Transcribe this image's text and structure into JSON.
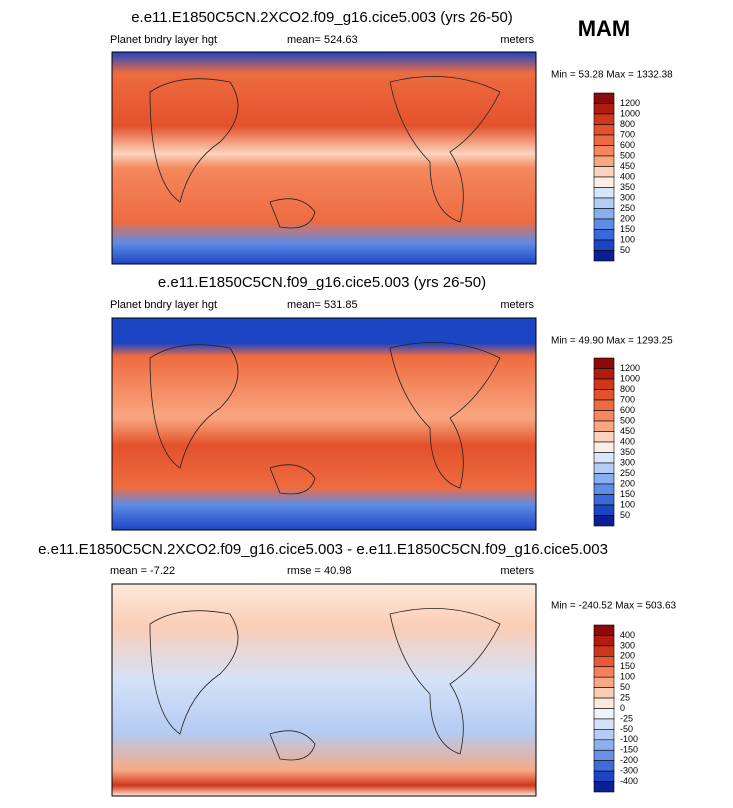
{
  "season": "MAM",
  "panels": [
    {
      "title": "e.e11.E1850C5CN.2XCO2.f09_g16.cice5.003 (yrs 26-50)",
      "left_label": "Planet bndry layer hgt",
      "center_label": "mean= 524.63",
      "right_label": "meters",
      "min_max": "Min =  53.28 Max = 1332.38",
      "colorbar": {
        "labels": [
          "1200",
          "1000",
          "800",
          "700",
          "600",
          "500",
          "450",
          "400",
          "350",
          "300",
          "250",
          "200",
          "150",
          "100",
          "50"
        ],
        "colors": [
          "#8b0a0a",
          "#b21c10",
          "#d0361a",
          "#e3522c",
          "#ee6b41",
          "#f4875d",
          "#f9a781",
          "#fcd3bc",
          "#fbeee6",
          "#d7e6f8",
          "#b3cdf4",
          "#8aafef",
          "#5f8ce6",
          "#3a69db",
          "#1c45c4",
          "#0a1f96"
        ]
      }
    },
    {
      "title": "e.e11.E1850C5CN.f09_g16.cice5.003 (yrs 26-50)",
      "left_label": "Planet bndry layer hgt",
      "center_label": "mean= 531.85",
      "right_label": "meters",
      "min_max": "Min =  49.90 Max = 1293.25",
      "colorbar": {
        "labels": [
          "1200",
          "1000",
          "800",
          "700",
          "600",
          "500",
          "450",
          "400",
          "350",
          "300",
          "250",
          "200",
          "150",
          "100",
          "50"
        ],
        "colors": [
          "#8b0a0a",
          "#b21c10",
          "#d0361a",
          "#e3522c",
          "#ee6b41",
          "#f4875d",
          "#f9a781",
          "#fcd3bc",
          "#fbeee6",
          "#d7e6f8",
          "#b3cdf4",
          "#8aafef",
          "#5f8ce6",
          "#3a69db",
          "#1c45c4",
          "#0a1f96"
        ]
      }
    },
    {
      "title": "e.e11.E1850C5CN.2XCO2.f09_g16.cice5.003 - e.e11.E1850C5CN.f09_g16.cice5.003",
      "left_label": "mean =  -7.22",
      "center_label": "rmse =  40.98",
      "right_label": "meters",
      "min_max": "Min = -240.52 Max = 503.63",
      "colorbar": {
        "labels": [
          "400",
          "300",
          "200",
          "150",
          "100",
          "50",
          "25",
          "0",
          "-25",
          "-50",
          "-100",
          "-150",
          "-200",
          "-300",
          "-400"
        ],
        "colors": [
          "#8b0a0a",
          "#b21c10",
          "#d0361a",
          "#e8583a",
          "#f2825e",
          "#f7a985",
          "#fbcdb5",
          "#fde9dc",
          "#eef3fc",
          "#d4e2f8",
          "#b4cbf3",
          "#8fb0ee",
          "#6890e6",
          "#3f6cdb",
          "#1c45c4",
          "#0a1f96"
        ]
      }
    }
  ]
}
